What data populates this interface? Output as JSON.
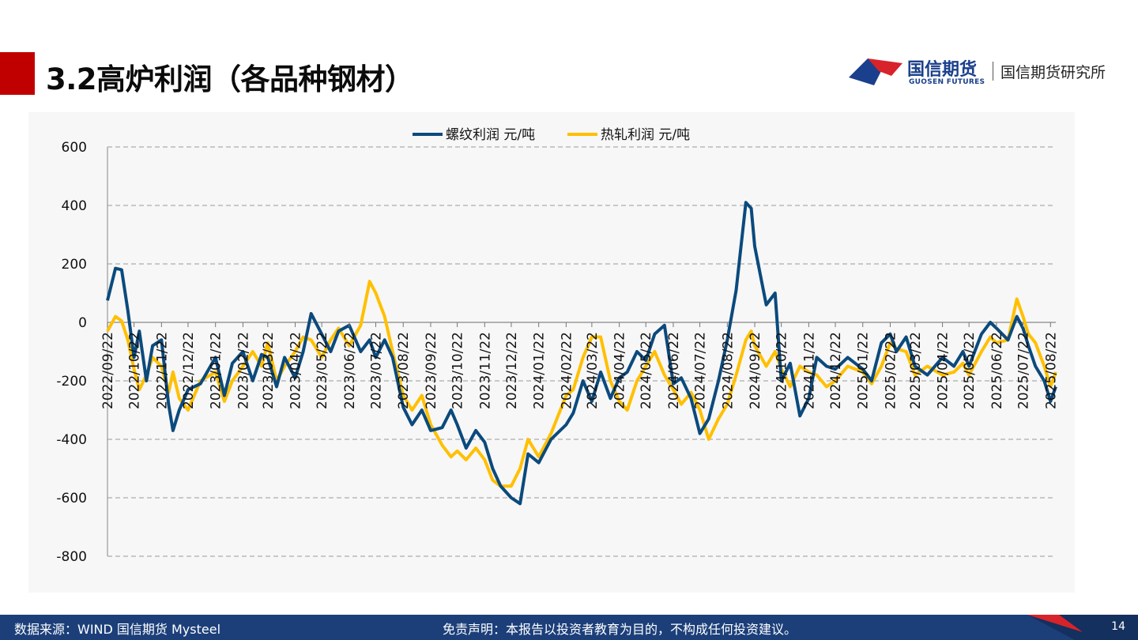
{
  "header": {
    "title": "3.2高炉利润（各品种钢材）",
    "logo_cn": "国信期货",
    "logo_en": "GUOSEN FUTURES",
    "institute": "国信期货研究所"
  },
  "footer": {
    "source": "数据来源：WIND 国信期货 Mysteel",
    "disclaimer": "免责声明：本报告以投资者教育为目的，不构成任何投资建议。",
    "page": "14"
  },
  "colors": {
    "title_bar": "#c00000",
    "footer": "#1c3f7a",
    "rebar": "#0b4a7d",
    "hrc": "#ffc000"
  },
  "chart_data": {
    "type": "line",
    "legend_position": "top-center",
    "grid": true,
    "ylim": [
      -800,
      600
    ],
    "yticks": [
      600,
      400,
      200,
      0,
      -200,
      -400,
      -600,
      -800
    ],
    "x_tick_labels": [
      "2022/09/22",
      "2022/10/22",
      "2022/11/22",
      "2022/12/22",
      "2023/01/22",
      "2023/02/22",
      "2023/03/22",
      "2023/04/22",
      "2023/05/22",
      "2023/06/22",
      "2023/07/22",
      "2023/08/22",
      "2023/09/22",
      "2023/10/22",
      "2023/11/22",
      "2023/12/22",
      "2024/01/22",
      "2024/02/22",
      "2024/03/22",
      "2024/04/22",
      "2024/05/22",
      "2024/06/22",
      "2024/07/22",
      "2024/08/22",
      "2024/09/22",
      "2024/10/22",
      "2024/11/22",
      "2024/12/22",
      "2025/01/22",
      "2025/02/22",
      "2025/03/22",
      "2025/04/22",
      "2025/05/22",
      "2025/06/22",
      "2025/07/22",
      "2025/08/22"
    ],
    "series": [
      {
        "name": "螺纹利润 元/吨",
        "color": "#0b4a7d",
        "points": [
          [
            "2022/09/22",
            75
          ],
          [
            "2022/10/01",
            185
          ],
          [
            "2022/10/08",
            180
          ],
          [
            "2022/10/15",
            40
          ],
          [
            "2022/10/22",
            -120
          ],
          [
            "2022/10/28",
            -30
          ],
          [
            "2022/11/05",
            -200
          ],
          [
            "2022/11/12",
            -80
          ],
          [
            "2022/11/22",
            -60
          ],
          [
            "2022/11/30",
            -280
          ],
          [
            "2022/12/05",
            -370
          ],
          [
            "2022/12/12",
            -300
          ],
          [
            "2022/12/22",
            -230
          ],
          [
            "2023/01/05",
            -210
          ],
          [
            "2023/01/22",
            -120
          ],
          [
            "2023/02/01",
            -250
          ],
          [
            "2023/02/10",
            -140
          ],
          [
            "2023/02/22",
            -100
          ],
          [
            "2023/03/05",
            -200
          ],
          [
            "2023/03/15",
            -110
          ],
          [
            "2023/03/22",
            -120
          ],
          [
            "2023/04/01",
            -220
          ],
          [
            "2023/04/10",
            -120
          ],
          [
            "2023/04/22",
            -190
          ],
          [
            "2023/05/01",
            -100
          ],
          [
            "2023/05/10",
            30
          ],
          [
            "2023/05/22",
            -40
          ],
          [
            "2023/06/01",
            -100
          ],
          [
            "2023/06/10",
            -30
          ],
          [
            "2023/06/22",
            -10
          ],
          [
            "2023/07/05",
            -100
          ],
          [
            "2023/07/15",
            -60
          ],
          [
            "2023/07/22",
            -120
          ],
          [
            "2023/08/01",
            -60
          ],
          [
            "2023/08/10",
            -120
          ],
          [
            "2023/08/22",
            -290
          ],
          [
            "2023/09/01",
            -350
          ],
          [
            "2023/09/12",
            -300
          ],
          [
            "2023/09/22",
            -370
          ],
          [
            "2023/10/05",
            -360
          ],
          [
            "2023/10/15",
            -300
          ],
          [
            "2023/10/22",
            -350
          ],
          [
            "2023/11/01",
            -430
          ],
          [
            "2023/11/12",
            -370
          ],
          [
            "2023/11/22",
            -410
          ],
          [
            "2023/12/01",
            -500
          ],
          [
            "2023/12/10",
            -560
          ],
          [
            "2023/12/22",
            -600
          ],
          [
            "2024/01/01",
            -620
          ],
          [
            "2024/01/10",
            -450
          ],
          [
            "2024/01/22",
            -480
          ],
          [
            "2024/02/05",
            -400
          ],
          [
            "2024/02/22",
            -350
          ],
          [
            "2024/03/01",
            -310
          ],
          [
            "2024/03/12",
            -200
          ],
          [
            "2024/03/22",
            -270
          ],
          [
            "2024/04/01",
            -170
          ],
          [
            "2024/04/12",
            -260
          ],
          [
            "2024/04/22",
            -190
          ],
          [
            "2024/05/01",
            -170
          ],
          [
            "2024/05/12",
            -100
          ],
          [
            "2024/05/22",
            -130
          ],
          [
            "2024/06/01",
            -40
          ],
          [
            "2024/06/12",
            -10
          ],
          [
            "2024/06/22",
            -210
          ],
          [
            "2024/07/01",
            -190
          ],
          [
            "2024/07/12",
            -260
          ],
          [
            "2024/07/22",
            -380
          ],
          [
            "2024/08/01",
            -330
          ],
          [
            "2024/08/12",
            -200
          ],
          [
            "2024/08/22",
            -60
          ],
          [
            "2024/09/01",
            110
          ],
          [
            "2024/09/12",
            410
          ],
          [
            "2024/09/18",
            390
          ],
          [
            "2024/09/22",
            260
          ],
          [
            "2024/10/05",
            60
          ],
          [
            "2024/10/15",
            100
          ],
          [
            "2024/10/22",
            -200
          ],
          [
            "2024/11/01",
            -140
          ],
          [
            "2024/11/12",
            -320
          ],
          [
            "2024/11/22",
            -260
          ],
          [
            "2024/12/01",
            -120
          ],
          [
            "2024/12/12",
            -150
          ],
          [
            "2024/12/22",
            -160
          ],
          [
            "2025/01/05",
            -120
          ],
          [
            "2025/01/22",
            -160
          ],
          [
            "2025/02/01",
            -200
          ],
          [
            "2025/02/12",
            -70
          ],
          [
            "2025/02/22",
            -40
          ],
          [
            "2025/03/01",
            -100
          ],
          [
            "2025/03/12",
            -50
          ],
          [
            "2025/03/22",
            -150
          ],
          [
            "2025/04/05",
            -180
          ],
          [
            "2025/04/22",
            -120
          ],
          [
            "2025/05/05",
            -150
          ],
          [
            "2025/05/15",
            -100
          ],
          [
            "2025/05/22",
            -150
          ],
          [
            "2025/06/05",
            -40
          ],
          [
            "2025/06/15",
            0
          ],
          [
            "2025/06/22",
            -20
          ],
          [
            "2025/07/05",
            -60
          ],
          [
            "2025/07/15",
            20
          ],
          [
            "2025/07/22",
            -20
          ],
          [
            "2025/07/28",
            -80
          ],
          [
            "2025/08/05",
            -150
          ],
          [
            "2025/08/15",
            -200
          ],
          [
            "2025/08/22",
            -270
          ],
          [
            "2025/08/28",
            -220
          ]
        ]
      },
      {
        "name": "热轧利润 元/吨",
        "color": "#ffc000",
        "points": [
          [
            "2022/09/22",
            -30
          ],
          [
            "2022/10/01",
            20
          ],
          [
            "2022/10/08",
            5
          ],
          [
            "2022/10/15",
            -60
          ],
          [
            "2022/10/22",
            -160
          ],
          [
            "2022/10/28",
            -230
          ],
          [
            "2022/11/05",
            -180
          ],
          [
            "2022/11/12",
            -120
          ],
          [
            "2022/11/22",
            -150
          ],
          [
            "2022/11/30",
            -240
          ],
          [
            "2022/12/05",
            -170
          ],
          [
            "2022/12/12",
            -260
          ],
          [
            "2022/12/22",
            -300
          ],
          [
            "2023/01/05",
            -200
          ],
          [
            "2023/01/22",
            -170
          ],
          [
            "2023/02/01",
            -270
          ],
          [
            "2023/02/10",
            -200
          ],
          [
            "2023/02/22",
            -150
          ],
          [
            "2023/03/05",
            -100
          ],
          [
            "2023/03/15",
            -150
          ],
          [
            "2023/03/22",
            -70
          ],
          [
            "2023/04/01",
            -200
          ],
          [
            "2023/04/10",
            -150
          ],
          [
            "2023/04/22",
            -100
          ],
          [
            "2023/05/01",
            -50
          ],
          [
            "2023/05/10",
            -60
          ],
          [
            "2023/05/22",
            -120
          ],
          [
            "2023/06/01",
            -60
          ],
          [
            "2023/06/10",
            -20
          ],
          [
            "2023/06/22",
            -80
          ],
          [
            "2023/07/05",
            -10
          ],
          [
            "2023/07/15",
            140
          ],
          [
            "2023/07/22",
            100
          ],
          [
            "2023/08/01",
            20
          ],
          [
            "2023/08/10",
            -100
          ],
          [
            "2023/08/22",
            -250
          ],
          [
            "2023/09/01",
            -300
          ],
          [
            "2023/09/12",
            -250
          ],
          [
            "2023/09/22",
            -350
          ],
          [
            "2023/10/05",
            -420
          ],
          [
            "2023/10/15",
            -460
          ],
          [
            "2023/10/22",
            -440
          ],
          [
            "2023/11/01",
            -470
          ],
          [
            "2023/11/12",
            -430
          ],
          [
            "2023/11/22",
            -470
          ],
          [
            "2023/12/01",
            -540
          ],
          [
            "2023/12/10",
            -560
          ],
          [
            "2023/12/22",
            -560
          ],
          [
            "2024/01/01",
            -500
          ],
          [
            "2024/01/10",
            -400
          ],
          [
            "2024/01/22",
            -460
          ],
          [
            "2024/02/05",
            -380
          ],
          [
            "2024/02/22",
            -250
          ],
          [
            "2024/03/01",
            -230
          ],
          [
            "2024/03/12",
            -120
          ],
          [
            "2024/03/22",
            -50
          ],
          [
            "2024/04/01",
            -50
          ],
          [
            "2024/04/12",
            -200
          ],
          [
            "2024/04/22",
            -270
          ],
          [
            "2024/05/01",
            -300
          ],
          [
            "2024/05/12",
            -200
          ],
          [
            "2024/05/22",
            -150
          ],
          [
            "2024/06/01",
            -100
          ],
          [
            "2024/06/12",
            -180
          ],
          [
            "2024/06/22",
            -230
          ],
          [
            "2024/07/01",
            -280
          ],
          [
            "2024/07/12",
            -240
          ],
          [
            "2024/07/22",
            -300
          ],
          [
            "2024/08/01",
            -400
          ],
          [
            "2024/08/12",
            -330
          ],
          [
            "2024/08/22",
            -280
          ],
          [
            "2024/09/01",
            -180
          ],
          [
            "2024/09/12",
            -60
          ],
          [
            "2024/09/18",
            -30
          ],
          [
            "2024/09/22",
            -80
          ],
          [
            "2024/10/05",
            -150
          ],
          [
            "2024/10/15",
            -100
          ],
          [
            "2024/10/22",
            -160
          ],
          [
            "2024/11/01",
            -220
          ],
          [
            "2024/11/12",
            -150
          ],
          [
            "2024/11/22",
            -170
          ],
          [
            "2024/12/01",
            -180
          ],
          [
            "2024/12/12",
            -220
          ],
          [
            "2024/12/22",
            -200
          ],
          [
            "2025/01/05",
            -150
          ],
          [
            "2025/01/22",
            -170
          ],
          [
            "2025/02/01",
            -210
          ],
          [
            "2025/02/12",
            -150
          ],
          [
            "2025/02/22",
            -70
          ],
          [
            "2025/03/01",
            -90
          ],
          [
            "2025/03/12",
            -100
          ],
          [
            "2025/03/22",
            -180
          ],
          [
            "2025/04/05",
            -150
          ],
          [
            "2025/04/22",
            -180
          ],
          [
            "2025/05/05",
            -170
          ],
          [
            "2025/05/15",
            -140
          ],
          [
            "2025/05/22",
            -180
          ],
          [
            "2025/06/05",
            -100
          ],
          [
            "2025/06/15",
            -50
          ],
          [
            "2025/06/22",
            -70
          ],
          [
            "2025/07/05",
            -60
          ],
          [
            "2025/07/15",
            80
          ],
          [
            "2025/07/22",
            20
          ],
          [
            "2025/07/28",
            -40
          ],
          [
            "2025/08/05",
            -70
          ],
          [
            "2025/08/15",
            -150
          ],
          [
            "2025/08/22",
            -220
          ],
          [
            "2025/08/28",
            -170
          ]
        ]
      }
    ]
  }
}
